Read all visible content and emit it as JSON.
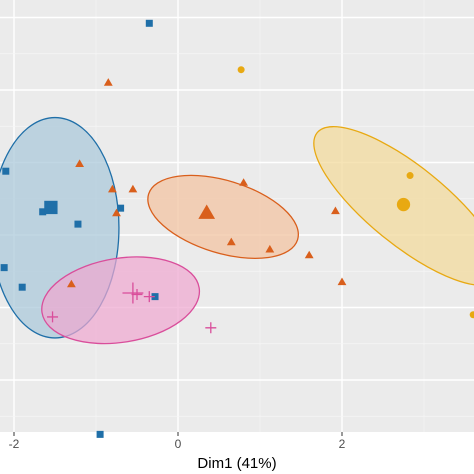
{
  "chart_data": {
    "type": "scatter",
    "xlabel": "Dim1 (41%)",
    "ylabel": "",
    "xlim": [
      -2.15,
      3.6
    ],
    "ylim": [
      -3.25,
      3.25
    ],
    "x_ticks": [
      -2,
      0,
      2
    ],
    "x_tick_labels": [
      "-2",
      "0",
      "2"
    ],
    "grid": true,
    "legend": "none",
    "colors": {
      "panel": "#ebebeb",
      "grid_major": "#ffffff",
      "grid_minor": "#f5f5f5",
      "blue": "#1f6fa8",
      "blue_fill": "#a9c7da",
      "pink": "#d94e9b",
      "pink_fill": "#efa8d0",
      "orange": "#d95f1c",
      "orange_fill": "#f2c2a0",
      "gold": "#e8a912",
      "gold_fill": "#f2d99a"
    },
    "series": [
      {
        "color": "#1f6fa8",
        "shape": "square",
        "points": [
          [
            -0.35,
            2.92
          ],
          [
            -2.1,
            0.88
          ],
          [
            -1.65,
            0.32
          ],
          [
            -1.22,
            0.15
          ],
          [
            -0.7,
            0.37
          ],
          [
            -2.12,
            -0.45
          ],
          [
            -1.9,
            -0.72
          ],
          [
            -0.28,
            -0.85
          ],
          [
            -0.95,
            -2.75
          ]
        ],
        "centroid": [
          -1.55,
          0.38
        ],
        "ellipse": {
          "cx": -1.5,
          "cy": 0.1,
          "rx": 0.78,
          "ry": 1.52,
          "angle": 0
        }
      },
      {
        "color": "#d94e9b",
        "shape": "cross",
        "points": [
          [
            -1.53,
            -1.13
          ],
          [
            -0.5,
            -0.82
          ],
          [
            -0.35,
            -0.85
          ],
          [
            0.4,
            -1.28
          ]
        ],
        "centroid": [
          -0.55,
          -0.8
        ],
        "ellipse": {
          "cx": -0.7,
          "cy": -0.9,
          "rx": 0.97,
          "ry": 0.58,
          "angle": -9
        }
      },
      {
        "color": "#d95f1c",
        "shape": "triangle",
        "points": [
          [
            -0.85,
            2.1
          ],
          [
            -1.2,
            0.98
          ],
          [
            -0.8,
            0.63
          ],
          [
            -0.75,
            0.3
          ],
          [
            -0.55,
            0.63
          ],
          [
            0.8,
            0.72
          ],
          [
            0.65,
            -0.1
          ],
          [
            1.12,
            -0.2
          ],
          [
            1.6,
            -0.28
          ],
          [
            1.92,
            0.33
          ],
          [
            2.0,
            -0.65
          ],
          [
            -1.3,
            -0.68
          ]
        ],
        "centroid": [
          0.35,
          0.3
        ],
        "ellipse": {
          "cx": 0.55,
          "cy": 0.25,
          "rx": 0.95,
          "ry": 0.5,
          "angle": 17
        }
      },
      {
        "color": "#e8a912",
        "shape": "circle",
        "points": [
          [
            0.77,
            2.28
          ],
          [
            2.83,
            0.82
          ],
          [
            3.6,
            -1.1
          ]
        ],
        "centroid": [
          2.75,
          0.42
        ],
        "ellipse": {
          "cx": 2.8,
          "cy": 0.4,
          "rx": 1.42,
          "ry": 0.54,
          "angle": 39
        }
      }
    ]
  }
}
